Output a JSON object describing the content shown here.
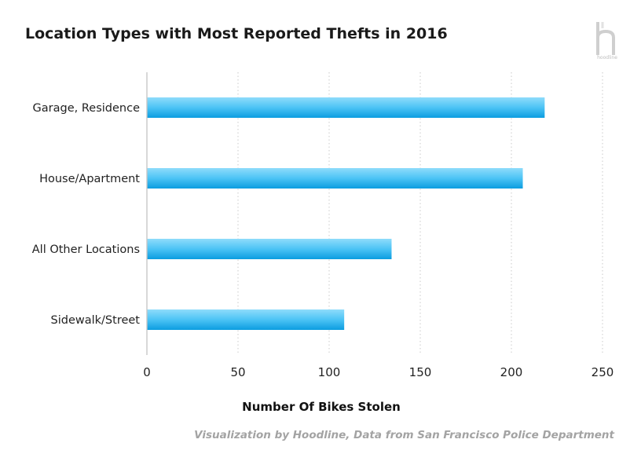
{
  "chart_data": {
    "type": "bar",
    "orientation": "horizontal",
    "title": "Location Types with Most Reported Thefts in 2016",
    "categories": [
      "Garage, Residence",
      "House/Apartment",
      "All Other Locations",
      "Sidewalk/Street"
    ],
    "values": [
      218,
      206,
      134,
      108
    ],
    "xlabel": "Number Of Bikes Stolen",
    "ylabel": "",
    "xlim": [
      0,
      250
    ],
    "xticks": [
      0,
      50,
      100,
      150,
      200,
      250
    ],
    "grid": "vertical dotted",
    "bar_color": "#29b6f6"
  },
  "logo": {
    "letter": "h",
    "text": "hoodline"
  },
  "credit": "Visualization by Hoodline, Data from San Francisco Police Department"
}
